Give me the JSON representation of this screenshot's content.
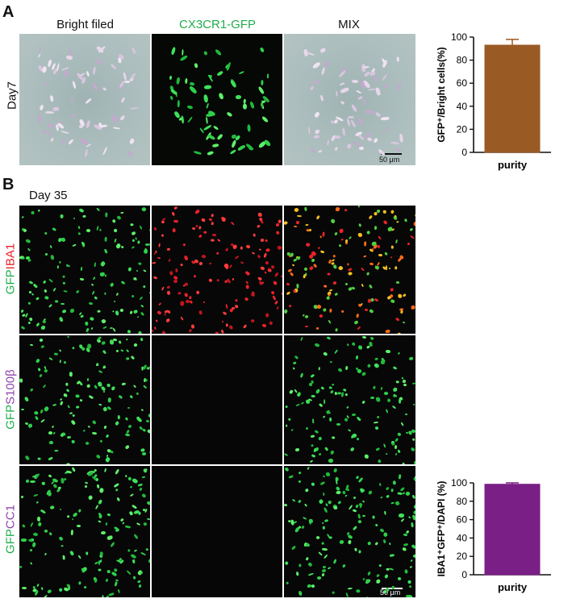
{
  "panelA": {
    "letter": "A",
    "columns": [
      "Bright filed",
      "CX3CR1-GFP",
      "MIX"
    ],
    "row_label": "Day7",
    "scale": "50 μm"
  },
  "panelB": {
    "letter": "B",
    "time_label": "Day 35",
    "rows": [
      {
        "green": "GFP",
        "marker": "IBA1",
        "marker_color": "#e8222a"
      },
      {
        "green": "GFP",
        "marker": "S100β",
        "marker_color": "#8e44ad"
      },
      {
        "green": "GFP",
        "marker": "CC1",
        "marker_color": "#8e44ad"
      }
    ],
    "scale": "50 μm"
  },
  "colors": {
    "green": "#1fae4b",
    "bar_brown": "#9a5a24",
    "bar_purple": "#7a1f86"
  },
  "chart_data": [
    {
      "type": "bar",
      "categories": [
        "purity"
      ],
      "values": [
        93
      ],
      "error": [
        5
      ],
      "ylabel": "GFP⁺/Bright cells(%)",
      "ylim": [
        0,
        100
      ],
      "yticks": [
        0,
        20,
        40,
        60,
        80,
        100
      ],
      "color": "#9a5a24"
    },
    {
      "type": "bar",
      "categories": [
        "purity"
      ],
      "values": [
        98.5
      ],
      "error": [
        1.5
      ],
      "ylabel": "IBA1⁺GFP⁺/DAPI (%)",
      "ylim": [
        0,
        100
      ],
      "yticks": [
        0,
        20,
        40,
        60,
        80,
        100
      ],
      "color": "#7a1f86"
    }
  ]
}
